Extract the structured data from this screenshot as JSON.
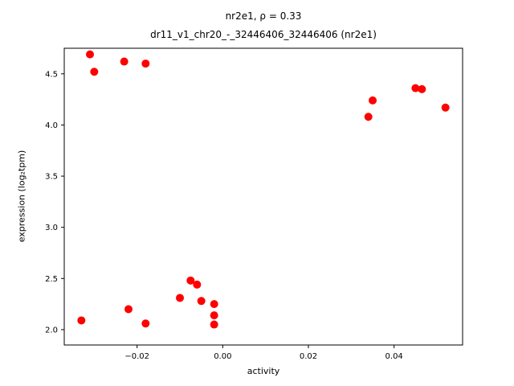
{
  "chart_data": {
    "type": "scatter",
    "title": "nr2e1, ρ = 0.33",
    "subtitle": "dr11_v1_chr20_-_32446406_32446406 (nr2e1)",
    "xlabel": "activity",
    "ylabel": "expression (log₂tpm)",
    "xlim": [
      -0.037,
      0.056
    ],
    "ylim": [
      1.85,
      4.75
    ],
    "xticks": [
      -0.02,
      0.0,
      0.02,
      0.04
    ],
    "yticks": [
      2.0,
      2.5,
      3.0,
      3.5,
      4.0,
      4.5
    ],
    "grid": false,
    "legend": null,
    "marker_color": "#ff0000",
    "marker_radius": 5,
    "points": [
      [
        -0.031,
        4.69
      ],
      [
        -0.03,
        4.52
      ],
      [
        -0.023,
        4.62
      ],
      [
        -0.018,
        4.6
      ],
      [
        0.034,
        4.08
      ],
      [
        0.035,
        4.24
      ],
      [
        0.045,
        4.36
      ],
      [
        0.0465,
        4.35
      ],
      [
        0.052,
        4.17
      ],
      [
        -0.033,
        2.09
      ],
      [
        -0.022,
        2.2
      ],
      [
        -0.018,
        2.06
      ],
      [
        -0.01,
        2.31
      ],
      [
        -0.0075,
        2.48
      ],
      [
        -0.006,
        2.44
      ],
      [
        -0.005,
        2.28
      ],
      [
        -0.002,
        2.25
      ],
      [
        -0.002,
        2.14
      ],
      [
        -0.002,
        2.05
      ]
    ]
  }
}
